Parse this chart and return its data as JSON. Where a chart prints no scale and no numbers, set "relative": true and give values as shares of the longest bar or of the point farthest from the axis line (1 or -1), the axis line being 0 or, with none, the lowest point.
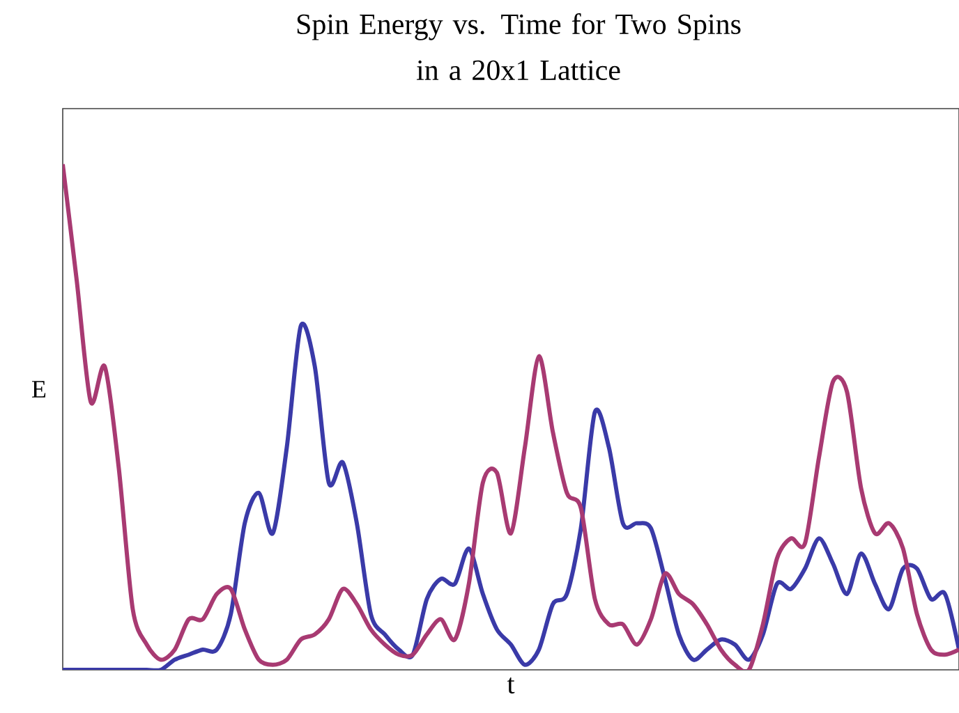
{
  "chart_data": {
    "type": "line",
    "relative": true,
    "title": "Spin Energy vs. Time for Two Spins\nin a 20x1 Lattice",
    "xlabel": "t",
    "ylabel": "E",
    "marker": "none",
    "line_style": "solid",
    "categories": [
      null,
      null,
      null,
      null,
      null,
      null,
      null,
      null,
      null,
      null,
      null,
      null,
      null,
      null,
      null,
      null,
      null,
      null,
      null,
      null,
      null,
      null,
      null,
      null,
      null,
      null,
      null,
      null,
      null,
      null,
      null,
      null,
      null,
      null,
      null,
      null,
      null,
      null,
      null,
      null,
      null,
      null,
      null,
      null,
      null,
      null,
      null,
      null,
      null,
      null,
      null,
      null,
      null,
      null,
      null,
      null,
      null,
      null,
      null,
      null,
      null,
      null,
      null,
      null,
      null
    ],
    "series": [
      {
        "color": "#3a3aa8",
        "values": [
          0,
          0,
          0,
          0,
          0,
          0,
          0,
          0.0,
          0.02,
          0.03,
          0.04,
          0.04,
          0.11,
          0.29,
          0.35,
          0.27,
          0.44,
          0.68,
          0.6,
          0.37,
          0.41,
          0.29,
          0.11,
          0.07,
          0.04,
          0.03,
          0.14,
          0.18,
          0.17,
          0.24,
          0.15,
          0.08,
          0.05,
          0.01,
          0.04,
          0.13,
          0.15,
          0.28,
          0.51,
          0.44,
          0.29,
          0.29,
          0.28,
          0.18,
          0.07,
          0.02,
          0.04,
          0.06,
          0.05,
          0.02,
          0.07,
          0.17,
          0.16,
          0.2,
          0.26,
          0.21,
          0.15,
          0.23,
          0.17,
          0.12,
          0.2,
          0.2,
          0.14,
          0.15,
          0.04
        ]
      },
      {
        "color": "#a83a72",
        "values": [
          1.0,
          0.77,
          0.53,
          0.6,
          0.4,
          0.12,
          0.05,
          0.02,
          0.04,
          0.1,
          0.1,
          0.15,
          0.16,
          0.08,
          0.02,
          0.01,
          0.02,
          0.06,
          0.07,
          0.1,
          0.16,
          0.13,
          0.08,
          0.05,
          0.03,
          0.03,
          0.07,
          0.1,
          0.06,
          0.17,
          0.37,
          0.39,
          0.27,
          0.44,
          0.62,
          0.47,
          0.35,
          0.32,
          0.14,
          0.09,
          0.09,
          0.05,
          0.1,
          0.19,
          0.15,
          0.13,
          0.09,
          0.04,
          0.01,
          0.0,
          0.09,
          0.22,
          0.26,
          0.25,
          0.42,
          0.57,
          0.55,
          0.36,
          0.27,
          0.29,
          0.24,
          0.11,
          0.04,
          0.03,
          0.04
        ]
      }
    ]
  }
}
